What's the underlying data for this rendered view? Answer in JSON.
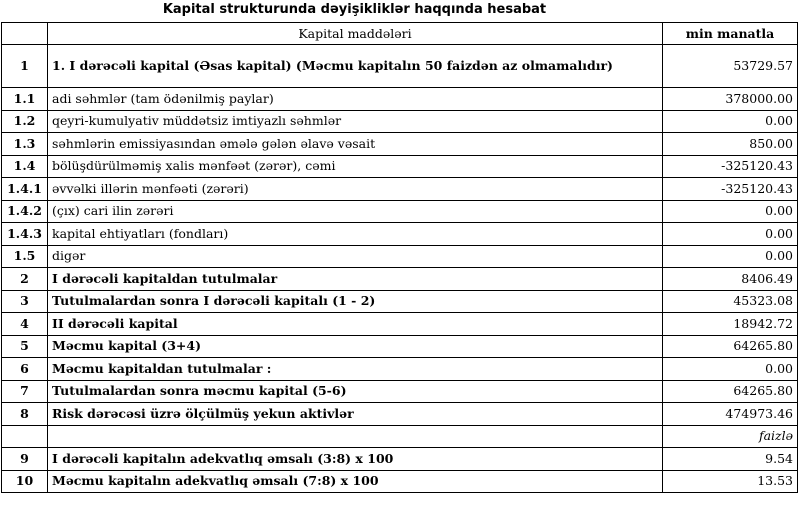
{
  "title": "Kapital strukturunda dəyişikliklər haqqında hesabat",
  "header": {
    "number": "",
    "item": "Kapital maddələri",
    "unit": "min manatla"
  },
  "rows": [
    {
      "no": "1",
      "label": "1. I dərəcəli kapital (Əsas kapital) (Məcmu kapitalın 50 faizdən  az olmamalıdır)",
      "value": "53729.57",
      "bold": true
    },
    {
      "no": "1.1",
      "label": "adi səhmlər (tam ödənilmiş paylar)",
      "value": "378000.00",
      "bold": false
    },
    {
      "no": "1.2",
      "label": "qeyri-kumulyativ müddətsiz imtiyazlı səhmlər",
      "value": "0.00",
      "bold": false
    },
    {
      "no": "1.3",
      "label": "səhmlərin emissiyasından əmələ gələn  əlavə vəsait",
      "value": "850.00",
      "bold": false
    },
    {
      "no": "1.4",
      "label": "bölüşdürülməmiş xalis mənfəət (zərər), cəmi",
      "value": "-325120.43",
      "bold": false
    },
    {
      "no": "1.4.1",
      "label": "əvvəlki illərin mənfəəti (zərəri)",
      "value": "-325120.43",
      "bold": false
    },
    {
      "no": "1.4.2",
      "label": "(çıx) cari ilin zərəri",
      "value": "0.00",
      "bold": false
    },
    {
      "no": "1.4.3",
      "label": "kapital ehtiyatları (fondları)",
      "value": "0.00",
      "bold": false
    },
    {
      "no": "1.5",
      "label": "digər",
      "value": "0.00",
      "bold": false
    },
    {
      "no": "2",
      "label": "I dərəcəli kapitaldan  tutulmalar",
      "value": "8406.49",
      "bold": true
    },
    {
      "no": "3",
      "label": "Tutulmalardan  sonra I dərəcəli kapitalı (1 - 2)",
      "value": "45323.08",
      "bold": true
    },
    {
      "no": "4",
      "label": "II dərəcəli  kapital",
      "value": "18942.72",
      "bold": true
    },
    {
      "no": "5",
      "label": "Məcmu kapital (3+4)",
      "value": "64265.80",
      "bold": true
    },
    {
      "no": "6",
      "label": "Məcmu kapitaldan tutulmalar :",
      "value": "0.00",
      "bold": true
    },
    {
      "no": "7",
      "label": "Tutulmalardan sonra məcmu kapital (5-6)",
      "value": "64265.80",
      "bold": true
    },
    {
      "no": "8",
      "label": "Risk dərəcəsi üzrə ölçülmüş  yekun aktivlər",
      "value": "474973.46",
      "bold": true
    }
  ],
  "percent_unit": "faizlə",
  "ratios": [
    {
      "no": "9",
      "label": "I dərəcəli  kapitalın  adekvatlıq  əmsalı (3:8) x 100",
      "value": "9.54"
    },
    {
      "no": "10",
      "label": "Məcmu kapitalın  adekvatlıq  əmsalı (7:8) x 100",
      "value": "13.53"
    }
  ]
}
